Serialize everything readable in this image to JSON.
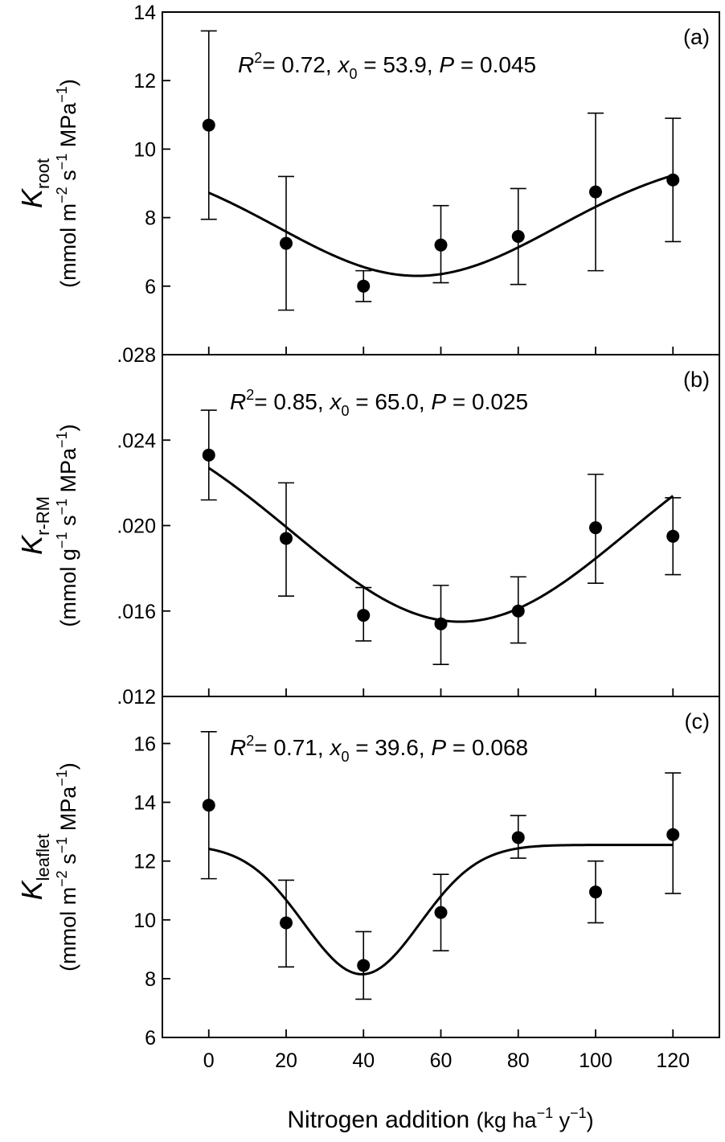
{
  "chart_data": [
    {
      "type": "scatter",
      "panel_label": "(a)",
      "y_symbol": "K",
      "y_subscript": "root",
      "y_unit_lines": [
        "(mmol m",
        "−2",
        " s",
        "−1",
        " MPa",
        "−1",
        ")"
      ],
      "annotation": {
        "r2": "0.72",
        "x0": "53.9",
        "p": "0.045"
      },
      "ylim": [
        4,
        14
      ],
      "yticks": [
        "6",
        "8",
        "10",
        "12",
        "14"
      ],
      "x": [
        0,
        20,
        40,
        60,
        80,
        100,
        120
      ],
      "y": [
        10.7,
        7.25,
        6.0,
        7.2,
        7.45,
        8.75,
        9.1
      ],
      "err_low": [
        7.95,
        5.3,
        5.55,
        6.1,
        6.05,
        6.45,
        7.3
      ],
      "err_high": [
        13.45,
        9.2,
        6.45,
        8.35,
        8.85,
        11.05,
        10.9
      ],
      "fit": {
        "kind": "gaussian",
        "y0": 9.9,
        "a": -3.6,
        "x0": 53.9,
        "b": 36
      }
    },
    {
      "type": "scatter",
      "panel_label": "(b)",
      "y_symbol": "K",
      "y_subscript": "r-RM",
      "annotation": {
        "r2": "0.85",
        "x0": "65.0",
        "p": "0.025"
      },
      "ylim": [
        0.012,
        0.028
      ],
      "yticks": [
        ".012",
        ".016",
        ".020",
        ".024",
        ".028"
      ],
      "x": [
        0,
        20,
        40,
        60,
        80,
        100,
        120
      ],
      "y": [
        0.0233,
        0.0194,
        0.0158,
        0.0154,
        0.016,
        0.0199,
        0.0195
      ],
      "err_low": [
        0.0212,
        0.0167,
        0.0146,
        0.0135,
        0.0145,
        0.0173,
        0.0177
      ],
      "err_high": [
        0.0254,
        0.022,
        0.0171,
        0.0172,
        0.0176,
        0.0224,
        0.0213
      ],
      "fit": {
        "kind": "gaussian",
        "y0": 0.0262,
        "a": -0.0107,
        "x0": 65.0,
        "b": 43.5
      }
    },
    {
      "type": "scatter",
      "panel_label": "(c)",
      "y_symbol": "K",
      "y_subscript": "leaflet",
      "annotation": {
        "r2": "0.71",
        "x0": "39.6",
        "p": "0.068"
      },
      "ylim": [
        6,
        17.6
      ],
      "yticks": [
        "6",
        "8",
        "10",
        "12",
        "14",
        "16"
      ],
      "x": [
        0,
        20,
        40,
        60,
        80,
        100,
        120
      ],
      "y": [
        13.9,
        9.9,
        8.45,
        10.25,
        12.8,
        10.95,
        12.9
      ],
      "err_low": [
        11.4,
        8.4,
        7.3,
        8.95,
        12.1,
        9.9,
        10.9
      ],
      "err_high": [
        16.4,
        11.35,
        9.6,
        11.55,
        13.55,
        12.0,
        15.0
      ],
      "fit": {
        "kind": "gaussian",
        "y0": 12.55,
        "a": -4.4,
        "x0": 39.6,
        "b": 15
      }
    }
  ],
  "x_axis": {
    "title": "Nitrogen addition",
    "unit": "(kg ha",
    "unit_sup1": "−1",
    "unit_mid": " y",
    "unit_sup2": "−1",
    "unit_end": ")",
    "xlim": [
      -12,
      132
    ],
    "ticks": [
      "0",
      "20",
      "40",
      "60",
      "80",
      "100",
      "120"
    ]
  },
  "y_units": {
    "a": {
      "pre": "(mmol m",
      "s1": "−2",
      "mid1": " s",
      "s2": "−1",
      "mid2": " MPa",
      "s3": "−1",
      "end": ")"
    },
    "b": {
      "pre": "(mmol g",
      "s1": "−1",
      "mid1": " s",
      "s2": "−1",
      "mid2": " MPa",
      "s3": "−1",
      "end": ")"
    },
    "c": {
      "pre": "(mmol m",
      "s1": "−2",
      "mid1": " s",
      "s2": "−1",
      "mid2": " MPa",
      "s3": "−1",
      "end": ")"
    }
  },
  "annotation_text": {
    "r": "R",
    "r_sup": "2",
    "eq": "= ",
    "sep1": ", ",
    "x": "x",
    "x_sub": "0",
    "eq2": " = ",
    "sep2": ", ",
    "p": "P",
    "eq3": " = "
  }
}
